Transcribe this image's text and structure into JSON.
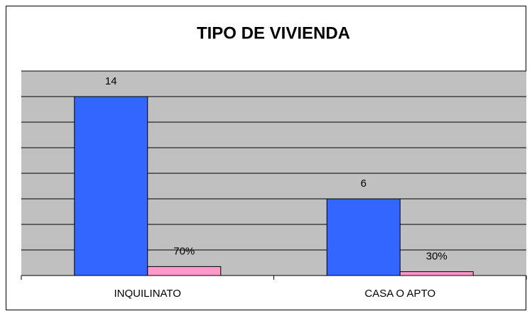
{
  "chart_data": {
    "type": "bar",
    "title": "TIPO DE VIVIENDA",
    "categories": [
      "INQUILINATO",
      "CASA O APTO"
    ],
    "series": [
      {
        "color": "#3366ff",
        "values": [
          14,
          6
        ]
      },
      {
        "color": "#ff99cc",
        "values": [
          0.7,
          0.3
        ],
        "value_labels": [
          "70%",
          "30%"
        ]
      }
    ],
    "ylim": [
      0,
      16
    ],
    "yticks": [
      0,
      2,
      4,
      6,
      8,
      10,
      12,
      14,
      16
    ],
    "grid": true,
    "show_tick_labels": false
  }
}
